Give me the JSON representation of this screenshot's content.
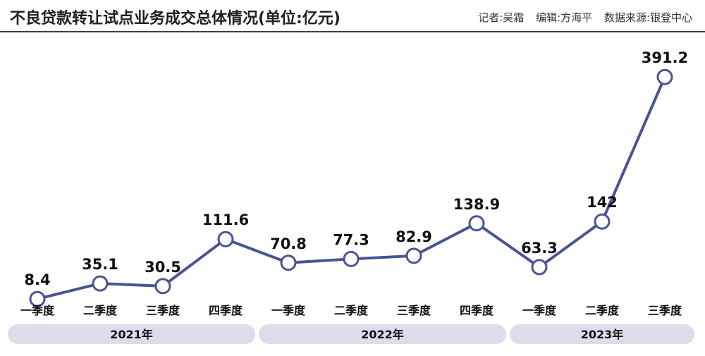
{
  "header": {
    "title": "不良贷款转让试点业务成交总体情况(单位:亿元)",
    "reporter": "记者:吴霜",
    "editor": "编辑:方海平",
    "source": "数据来源:银登中心"
  },
  "chart_data": {
    "type": "line",
    "title": "不良贷款转让试点业务成交总体情况(单位:亿元)",
    "categories": [
      "一季度",
      "二季度",
      "三季度",
      "四季度",
      "一季度",
      "二季度",
      "三季度",
      "四季度",
      "一季度",
      "二季度",
      "三季度"
    ],
    "groups": [
      {
        "label": "2021年",
        "count": 4
      },
      {
        "label": "2022年",
        "count": 4
      },
      {
        "label": "2023年",
        "count": 3
      }
    ],
    "series": [
      {
        "values": [
          8.4,
          35.1,
          30.5,
          111.6,
          70.8,
          77.3,
          82.9,
          138.9,
          63.3,
          142,
          391.2
        ]
      }
    ],
    "value_labels": [
      "8.4",
      "35.1",
      "30.5",
      "111.6",
      "70.8",
      "77.3",
      "82.9",
      "138.9",
      "63.3",
      "142",
      "391.2"
    ],
    "ylim": [
      0,
      400
    ],
    "grid": false,
    "colors": {
      "line": "#4a5493",
      "marker_fill": "#ffffff",
      "year_band": "#dcdcea"
    }
  }
}
